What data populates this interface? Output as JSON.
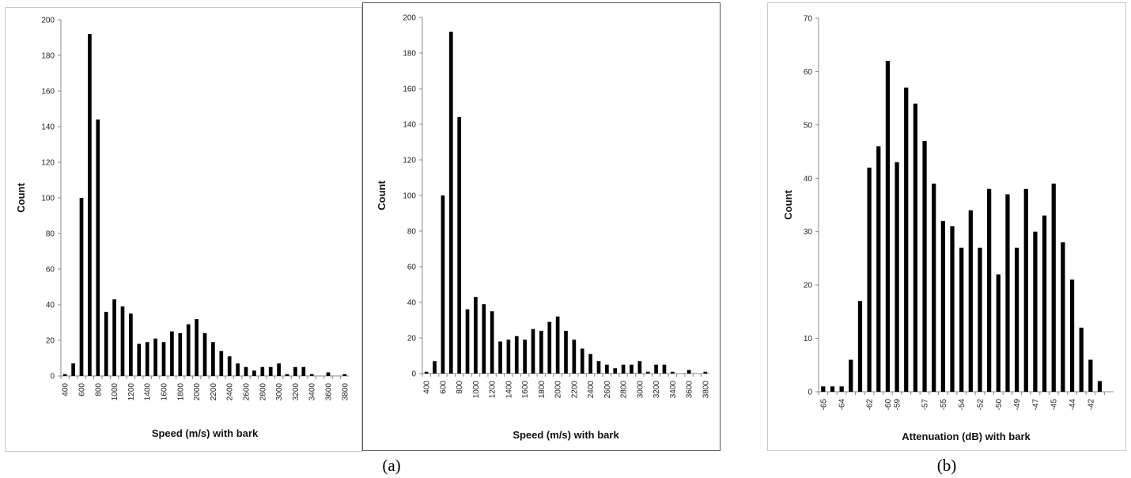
{
  "captions": [
    "(a)",
    "(b)"
  ],
  "chart_data": [
    {
      "type": "bar",
      "ylabel": "Count",
      "xlabel": "Speed (m/s) with bark",
      "ylim": [
        0,
        200
      ],
      "yticks": [
        0,
        20,
        40,
        60,
        80,
        100,
        120,
        140,
        160,
        180,
        200
      ],
      "categories": [
        400,
        500,
        600,
        700,
        800,
        900,
        1000,
        1100,
        1200,
        1300,
        1400,
        1500,
        1600,
        1700,
        1800,
        1900,
        2000,
        2100,
        2200,
        2300,
        2400,
        2500,
        2600,
        2700,
        2800,
        2900,
        3000,
        3100,
        3200,
        3300,
        3400,
        3500,
        3600,
        3700,
        3800
      ],
      "tick_labels": [
        "400",
        "",
        "600",
        "",
        "800",
        "",
        "1000",
        "",
        "1200",
        "",
        "1400",
        "",
        "1600",
        "",
        "1800",
        "",
        "2000",
        "",
        "2200",
        "",
        "2400",
        "",
        "2600",
        "",
        "2800",
        "",
        "3000",
        "",
        "3200",
        "",
        "3400",
        "",
        "3600",
        "",
        "3800"
      ],
      "values": [
        1,
        7,
        100,
        192,
        144,
        36,
        43,
        39,
        35,
        18,
        19,
        21,
        19,
        25,
        24,
        29,
        32,
        24,
        19,
        14,
        11,
        7,
        5,
        3,
        5,
        5,
        7,
        1,
        5,
        5,
        1,
        0,
        2,
        0,
        1
      ],
      "grid": false,
      "color": "#000000"
    },
    {
      "type": "bar",
      "ylabel": "Count",
      "xlabel": "Speed (m/s) with bark",
      "ylim": [
        0,
        200
      ],
      "yticks": [
        0,
        20,
        40,
        60,
        80,
        100,
        120,
        140,
        160,
        180,
        200
      ],
      "categories": [
        400,
        500,
        600,
        700,
        800,
        900,
        1000,
        1100,
        1200,
        1300,
        1400,
        1500,
        1600,
        1700,
        1800,
        1900,
        2000,
        2100,
        2200,
        2300,
        2400,
        2500,
        2600,
        2700,
        2800,
        2900,
        3000,
        3100,
        3200,
        3300,
        3400,
        3500,
        3600,
        3700,
        3800
      ],
      "tick_labels": [
        "400",
        "",
        "600",
        "",
        "800",
        "",
        "1000",
        "",
        "1200",
        "",
        "1400",
        "",
        "1600",
        "",
        "1800",
        "",
        "2000",
        "",
        "2200",
        "",
        "2400",
        "",
        "2600",
        "",
        "2800",
        "",
        "3000",
        "",
        "3200",
        "",
        "3400",
        "",
        "3600",
        "",
        "3800"
      ],
      "values": [
        1,
        7,
        100,
        192,
        144,
        36,
        43,
        39,
        35,
        18,
        19,
        21,
        19,
        25,
        24,
        29,
        32,
        24,
        19,
        14,
        11,
        7,
        5,
        3,
        5,
        5,
        7,
        1,
        5,
        5,
        1,
        0,
        2,
        0,
        1
      ],
      "grid": false,
      "color": "#000000"
    },
    {
      "type": "bar",
      "ylabel": "Count",
      "xlabel": "Attenuation (dB) with bark",
      "ylim": [
        0,
        70
      ],
      "yticks": [
        0,
        10,
        20,
        30,
        40,
        50,
        60,
        70
      ],
      "categories": [
        -65,
        -64.5,
        -64,
        -63.5,
        -63,
        -62,
        -61,
        -60,
        -59,
        -58.5,
        -58,
        -57,
        -56,
        -55,
        -54.5,
        -54,
        -53,
        -52,
        -51,
        -50,
        -49.5,
        -49,
        -48,
        -47,
        -46,
        -45,
        -44.5,
        -44,
        -43,
        -42,
        -41,
        -40
      ],
      "tick_labels": [
        "-65",
        "",
        "-64",
        "",
        "",
        "-62",
        "",
        "-60",
        "-59",
        "",
        "",
        "-57",
        "",
        "-55",
        "",
        "-54",
        "",
        "-52",
        "",
        "-50",
        "",
        "-49",
        "",
        "-47",
        "",
        "-45",
        "",
        "-44",
        "",
        "-42",
        "",
        ""
      ],
      "values": [
        1,
        1,
        1,
        6,
        17,
        42,
        46,
        62,
        43,
        57,
        54,
        47,
        39,
        32,
        31,
        27,
        34,
        27,
        38,
        22,
        37,
        27,
        38,
        30,
        33,
        39,
        28,
        21,
        12,
        6,
        2,
        0
      ],
      "grid": false,
      "color": "#000000"
    }
  ]
}
